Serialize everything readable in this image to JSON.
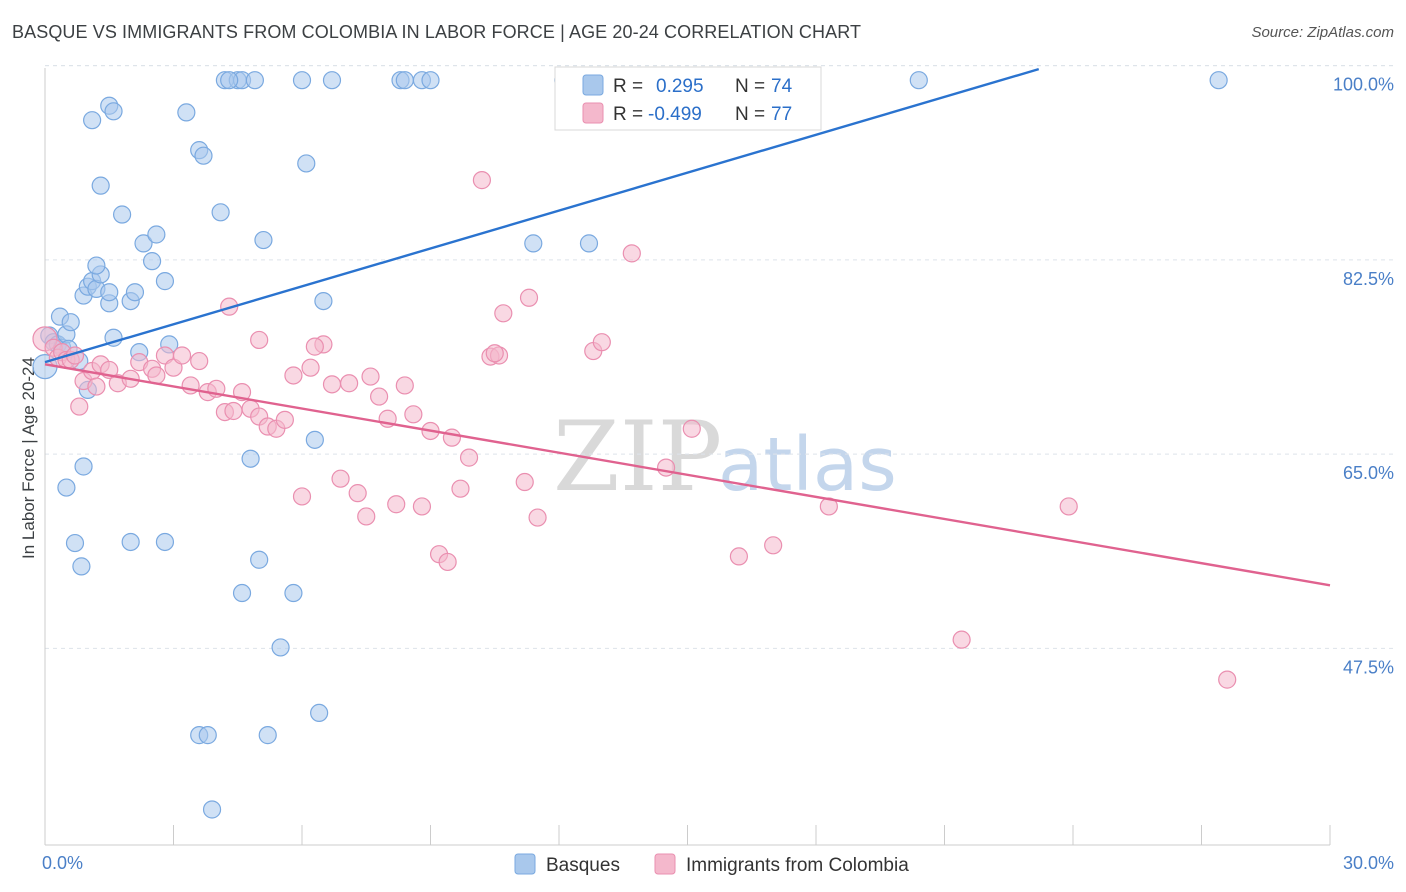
{
  "title": "BASQUE VS IMMIGRANTS FROM COLOMBIA IN LABOR FORCE | AGE 20-24 CORRELATION CHART",
  "source": "Source: ZipAtlas.com",
  "watermark": {
    "part1": "ZIP",
    "part2": "atlas"
  },
  "colors": {
    "blue": "#2a73cf",
    "blue_fill": "#a9c8ec",
    "pink": "#e0628f",
    "pink_fill": "#f4b8cc",
    "grid": "#dde3ea",
    "tick_text": "#4a7fc7"
  },
  "legend": {
    "r_label": "R =",
    "n_label": "N =",
    "rows": [
      {
        "r": "0.295",
        "n": "74"
      },
      {
        "r": "-0.499",
        "n": "77"
      }
    ]
  },
  "chart_data": {
    "type": "scatter",
    "title": "BASQUE VS IMMIGRANTS FROM COLOMBIA IN LABOR FORCE | AGE 20-24 CORRELATION CHART",
    "xlabel": "",
    "ylabel": "In Labor Force | Age 20-24",
    "xlim": [
      0,
      30
    ],
    "ylim": [
      31.5,
      101.5
    ],
    "x_tick_labels": [
      "0.0%",
      "30.0%"
    ],
    "y_ticks": [
      47.5,
      65.0,
      82.5,
      100.0
    ],
    "y_tick_labels": [
      "47.5%",
      "65.0%",
      "82.5%",
      "100.0%"
    ],
    "grid": true,
    "legend_position": "top-center",
    "series": [
      {
        "name": "Basques",
        "r": 0.295,
        "n": 74,
        "trend": {
          "x": [
            0.0,
            23.2
          ],
          "y": [
            75.0,
            101.4
          ]
        },
        "points": [
          [
            0.0,
            74.6
          ],
          [
            0.1,
            77.4
          ],
          [
            0.2,
            76.8
          ],
          [
            0.3,
            76.6
          ],
          [
            0.35,
            79.1
          ],
          [
            0.4,
            76.3
          ],
          [
            0.5,
            77.5
          ],
          [
            0.55,
            76.2
          ],
          [
            0.6,
            78.6
          ],
          [
            0.8,
            75.1
          ],
          [
            0.9,
            81.0
          ],
          [
            1.0,
            81.8
          ],
          [
            1.1,
            82.3
          ],
          [
            1.2,
            81.6
          ],
          [
            1.3,
            82.9
          ],
          [
            1.0,
            72.5
          ],
          [
            0.9,
            65.6
          ],
          [
            0.85,
            56.6
          ],
          [
            0.7,
            58.7
          ],
          [
            0.5,
            63.7
          ],
          [
            1.2,
            83.7
          ],
          [
            1.3,
            90.9
          ],
          [
            1.5,
            98.1
          ],
          [
            1.6,
            97.6
          ],
          [
            1.8,
            88.3
          ],
          [
            1.5,
            80.3
          ],
          [
            1.5,
            81.3
          ],
          [
            1.6,
            77.2
          ],
          [
            2.0,
            80.5
          ],
          [
            2.1,
            81.3
          ],
          [
            2.2,
            75.9
          ],
          [
            2.3,
            85.7
          ],
          [
            2.5,
            84.1
          ],
          [
            2.6,
            86.5
          ],
          [
            2.8,
            82.3
          ],
          [
            2.9,
            76.6
          ],
          [
            2.0,
            58.8
          ],
          [
            2.8,
            58.8
          ],
          [
            3.3,
            97.5
          ],
          [
            3.6,
            94.1
          ],
          [
            3.7,
            93.6
          ],
          [
            4.1,
            88.5
          ],
          [
            4.2,
            100.4
          ],
          [
            4.5,
            100.4
          ],
          [
            4.6,
            100.4
          ],
          [
            4.9,
            100.4
          ],
          [
            5.1,
            86.0
          ],
          [
            4.8,
            66.3
          ],
          [
            5.0,
            57.2
          ],
          [
            4.6,
            54.2
          ],
          [
            5.5,
            49.3
          ],
          [
            5.8,
            54.2
          ],
          [
            5.2,
            41.4
          ],
          [
            3.6,
            41.4
          ],
          [
            3.8,
            41.4
          ],
          [
            3.9,
            34.7
          ],
          [
            6.0,
            100.4
          ],
          [
            6.1,
            92.9
          ],
          [
            6.3,
            68.0
          ],
          [
            6.5,
            80.5
          ],
          [
            6.4,
            43.4
          ],
          [
            8.3,
            100.4
          ],
          [
            8.4,
            100.4
          ],
          [
            8.8,
            100.4
          ],
          [
            9.0,
            100.4
          ],
          [
            11.4,
            85.7
          ],
          [
            12.1,
            100.4
          ],
          [
            12.7,
            85.7
          ],
          [
            13.1,
            100.4
          ],
          [
            20.4,
            100.4
          ],
          [
            27.4,
            100.4
          ],
          [
            1.1,
            96.8
          ],
          [
            6.7,
            100.4
          ],
          [
            4.3,
            100.4
          ]
        ]
      },
      {
        "name": "Immigrants from Colombia",
        "r": -0.499,
        "n": 77,
        "trend": {
          "x": [
            0.0,
            30.0
          ],
          "y": [
            74.8,
            54.9
          ]
        },
        "points": [
          [
            0.0,
            77.1
          ],
          [
            0.2,
            76.3
          ],
          [
            0.3,
            75.4
          ],
          [
            0.4,
            75.9
          ],
          [
            0.5,
            75.2
          ],
          [
            0.6,
            75.2
          ],
          [
            0.7,
            75.6
          ],
          [
            0.9,
            73.3
          ],
          [
            1.1,
            74.2
          ],
          [
            1.3,
            74.8
          ],
          [
            1.5,
            74.3
          ],
          [
            0.8,
            71.0
          ],
          [
            1.2,
            72.8
          ],
          [
            1.7,
            73.1
          ],
          [
            2.0,
            73.5
          ],
          [
            2.2,
            75.0
          ],
          [
            2.5,
            74.4
          ],
          [
            2.6,
            73.8
          ],
          [
            2.8,
            75.6
          ],
          [
            3.0,
            74.5
          ],
          [
            3.2,
            75.6
          ],
          [
            3.4,
            72.9
          ],
          [
            3.6,
            75.1
          ],
          [
            3.8,
            72.3
          ],
          [
            4.0,
            72.6
          ],
          [
            4.2,
            70.5
          ],
          [
            4.4,
            70.6
          ],
          [
            4.6,
            72.3
          ],
          [
            4.8,
            70.8
          ],
          [
            5.0,
            70.1
          ],
          [
            5.2,
            69.2
          ],
          [
            5.4,
            69.0
          ],
          [
            5.6,
            69.8
          ],
          [
            5.8,
            73.8
          ],
          [
            6.0,
            62.9
          ],
          [
            6.2,
            74.5
          ],
          [
            6.5,
            76.6
          ],
          [
            6.7,
            73.0
          ],
          [
            6.9,
            64.5
          ],
          [
            7.1,
            73.1
          ],
          [
            7.3,
            63.2
          ],
          [
            7.5,
            61.1
          ],
          [
            7.6,
            73.7
          ],
          [
            7.8,
            71.9
          ],
          [
            8.0,
            69.9
          ],
          [
            8.2,
            62.2
          ],
          [
            8.4,
            72.9
          ],
          [
            8.6,
            70.3
          ],
          [
            8.8,
            62.0
          ],
          [
            9.0,
            68.8
          ],
          [
            9.2,
            57.7
          ],
          [
            9.4,
            57.0
          ],
          [
            9.5,
            68.2
          ],
          [
            9.7,
            63.6
          ],
          [
            9.9,
            66.4
          ],
          [
            10.2,
            91.4
          ],
          [
            10.4,
            75.5
          ],
          [
            10.6,
            75.6
          ],
          [
            10.7,
            79.4
          ],
          [
            11.3,
            80.8
          ],
          [
            11.5,
            61.0
          ],
          [
            11.2,
            64.2
          ],
          [
            12.8,
            76.0
          ],
          [
            13.0,
            76.8
          ],
          [
            14.5,
            65.5
          ],
          [
            15.1,
            69.0
          ],
          [
            16.2,
            57.5
          ],
          [
            17.0,
            58.5
          ],
          [
            18.3,
            62.0
          ],
          [
            21.4,
            50.0
          ],
          [
            23.9,
            62.0
          ],
          [
            27.6,
            46.4
          ],
          [
            4.3,
            80.0
          ],
          [
            5.0,
            77.0
          ],
          [
            6.3,
            76.4
          ],
          [
            10.5,
            75.8
          ],
          [
            13.7,
            84.8
          ]
        ]
      }
    ]
  },
  "bottom_legend": [
    {
      "label": "Basques"
    },
    {
      "label": "Immigrants from Colombia"
    }
  ]
}
